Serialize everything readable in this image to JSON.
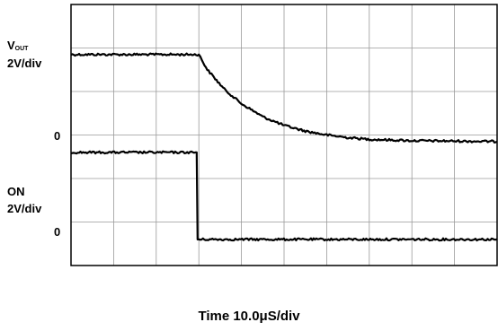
{
  "chart_data": {
    "type": "line",
    "grid": true,
    "divisions": {
      "x": 10,
      "y": 6
    },
    "series": [
      {
        "label_main": "V",
        "label_sub": "OUT",
        "scale": "2V/div",
        "zero_label": "0",
        "baseline_div": 2.85,
        "points": [
          [
            0,
            4.85
          ],
          [
            3.0,
            4.85
          ],
          [
            3.2,
            4.5
          ],
          [
            3.6,
            4.05
          ],
          [
            4.0,
            3.72
          ],
          [
            4.5,
            3.42
          ],
          [
            5.0,
            3.22
          ],
          [
            5.5,
            3.09
          ],
          [
            6.0,
            3.0
          ],
          [
            6.5,
            2.94
          ],
          [
            7.0,
            2.9
          ],
          [
            8.0,
            2.87
          ],
          [
            9.0,
            2.86
          ],
          [
            10.0,
            2.85
          ]
        ]
      },
      {
        "label_main": "ON",
        "label_sub": "",
        "scale": "2V/div",
        "zero_label": "0",
        "baseline_div": 0.6,
        "points": [
          [
            0,
            2.6
          ],
          [
            2.95,
            2.6
          ],
          [
            2.97,
            0.6
          ],
          [
            10.0,
            0.6
          ]
        ]
      }
    ],
    "xlabel": "Time 10.0μS/div"
  }
}
